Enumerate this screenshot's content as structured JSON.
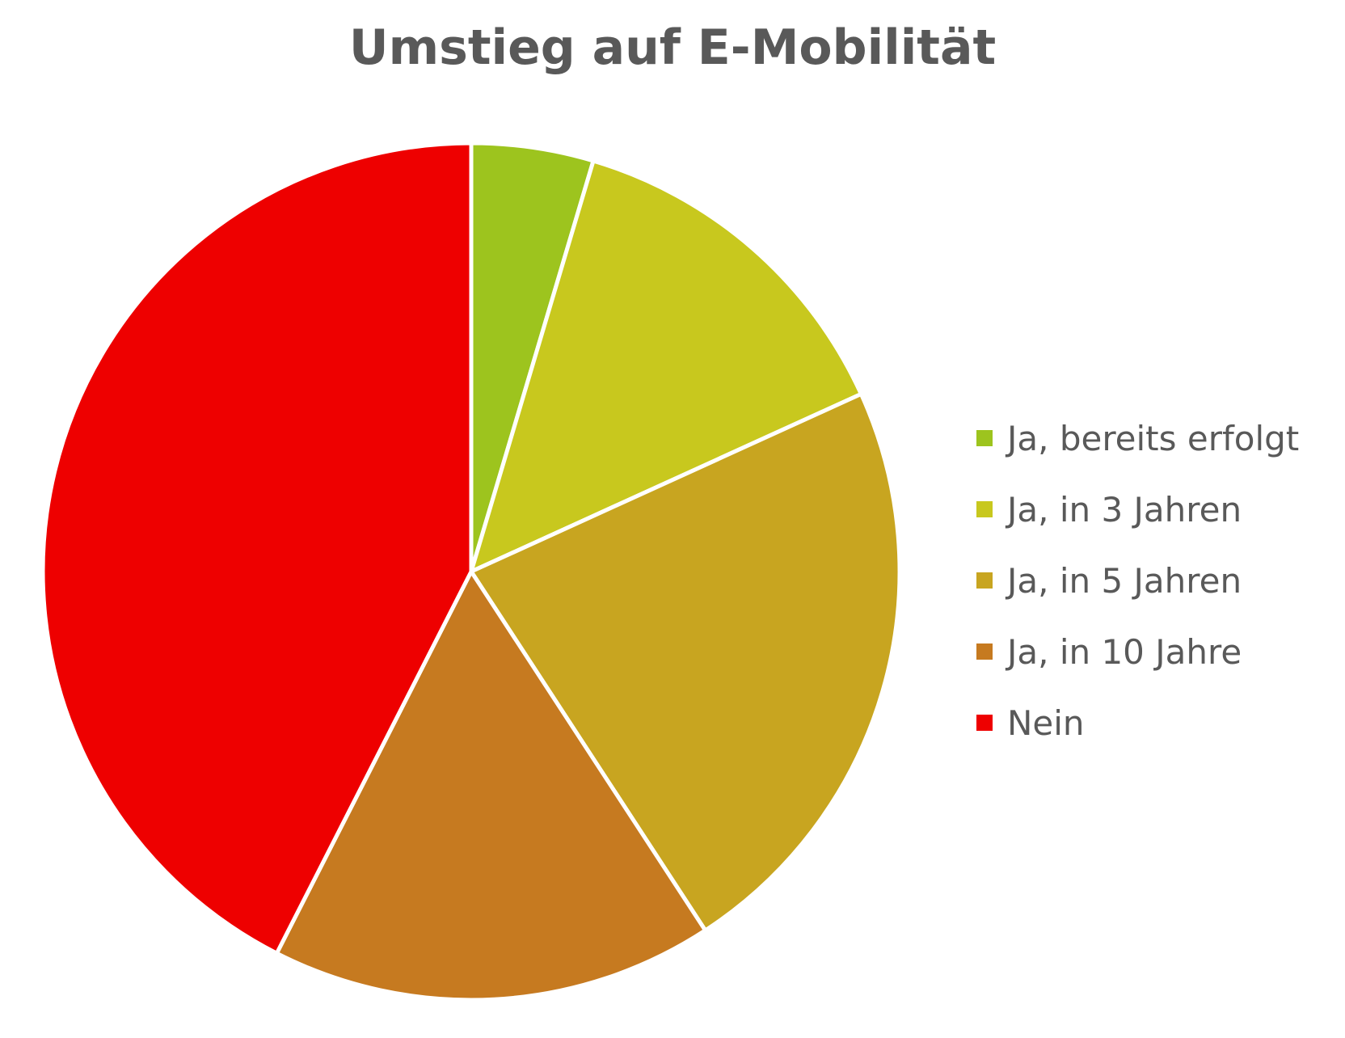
{
  "chart_data": {
    "type": "pie",
    "title": "Umstieg auf E-Mobilität",
    "legend_position": "right",
    "slices": [
      {
        "label": "Ja, bereits erfolgt",
        "value": 4.6,
        "color": "#9DC41E"
      },
      {
        "label": "Ja, in 3 Jahren",
        "value": 13.6,
        "color": "#C8C81E"
      },
      {
        "label": "Ja, in 5 Jahren",
        "value": 22.6,
        "color": "#C8A520"
      },
      {
        "label": "Ja, in 10 Jahre",
        "value": 16.7,
        "color": "#C67A20"
      },
      {
        "label": "Nein",
        "value": 42.5,
        "color": "#EE0000"
      }
    ],
    "slice_border_color": "#ffffff",
    "text_color": "#595959"
  }
}
